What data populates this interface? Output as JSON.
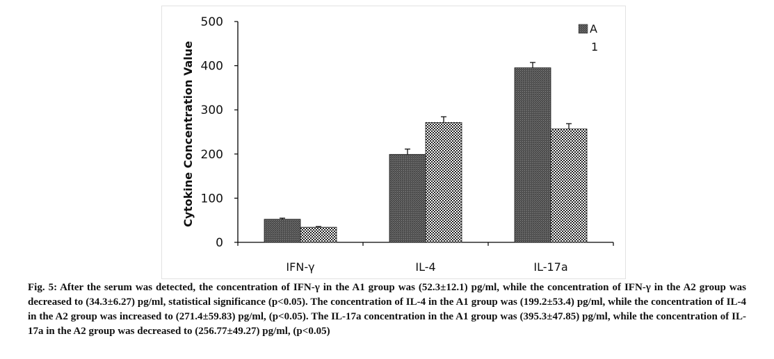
{
  "chart_data": {
    "type": "bar",
    "categories": [
      "IFN-γ",
      "IL-4",
      "IL-17a"
    ],
    "series": [
      {
        "name": "A",
        "values": [
          52.3,
          199.2,
          395.3
        ],
        "errors": [
          2.5,
          12,
          12
        ],
        "pattern": "dark-stipple",
        "color": "#5a5a5a"
      },
      {
        "name": "",
        "values": [
          34.3,
          271.4,
          256.77
        ],
        "errors": [
          1.5,
          13,
          12
        ],
        "pattern": "checker",
        "color": "#777777"
      }
    ],
    "legend_entries": [
      "A",
      "1"
    ],
    "legend_position": "top-right",
    "title": "",
    "xlabel": "",
    "ylabel": "Cytokine Concentration Value",
    "ylim": [
      0,
      500
    ],
    "yticks": [
      0,
      100,
      200,
      300,
      400,
      500
    ],
    "grid": false
  },
  "caption": {
    "label": "Fig. 5:",
    "text": "After the serum was detected, the concentration of IFN-γ in the A1 group was (52.3±12.1) pg/ml, while the concentration of IFN-γ in the A2 group was decreased to (34.3±6.27) pg/ml, statistical significance (p<0.05). The concentration of IL-4 in the A1 group was (199.2±53.4) pg/ml, while the concentration of IL-4 in the A2 group was increased to (271.4±59.83) pg/ml, (p<0.05). The IL-17a concentration in the A1 group was (395.3±47.85) pg/ml, while the concentration of IL-17a in the A2 group was decreased to (256.77±49.27) pg/ml, (p<0.05)"
  },
  "colors": {
    "axis": "#000000",
    "bar_dark": "#5a5a5a",
    "bar_checker": "#777777",
    "text": "#111111"
  }
}
